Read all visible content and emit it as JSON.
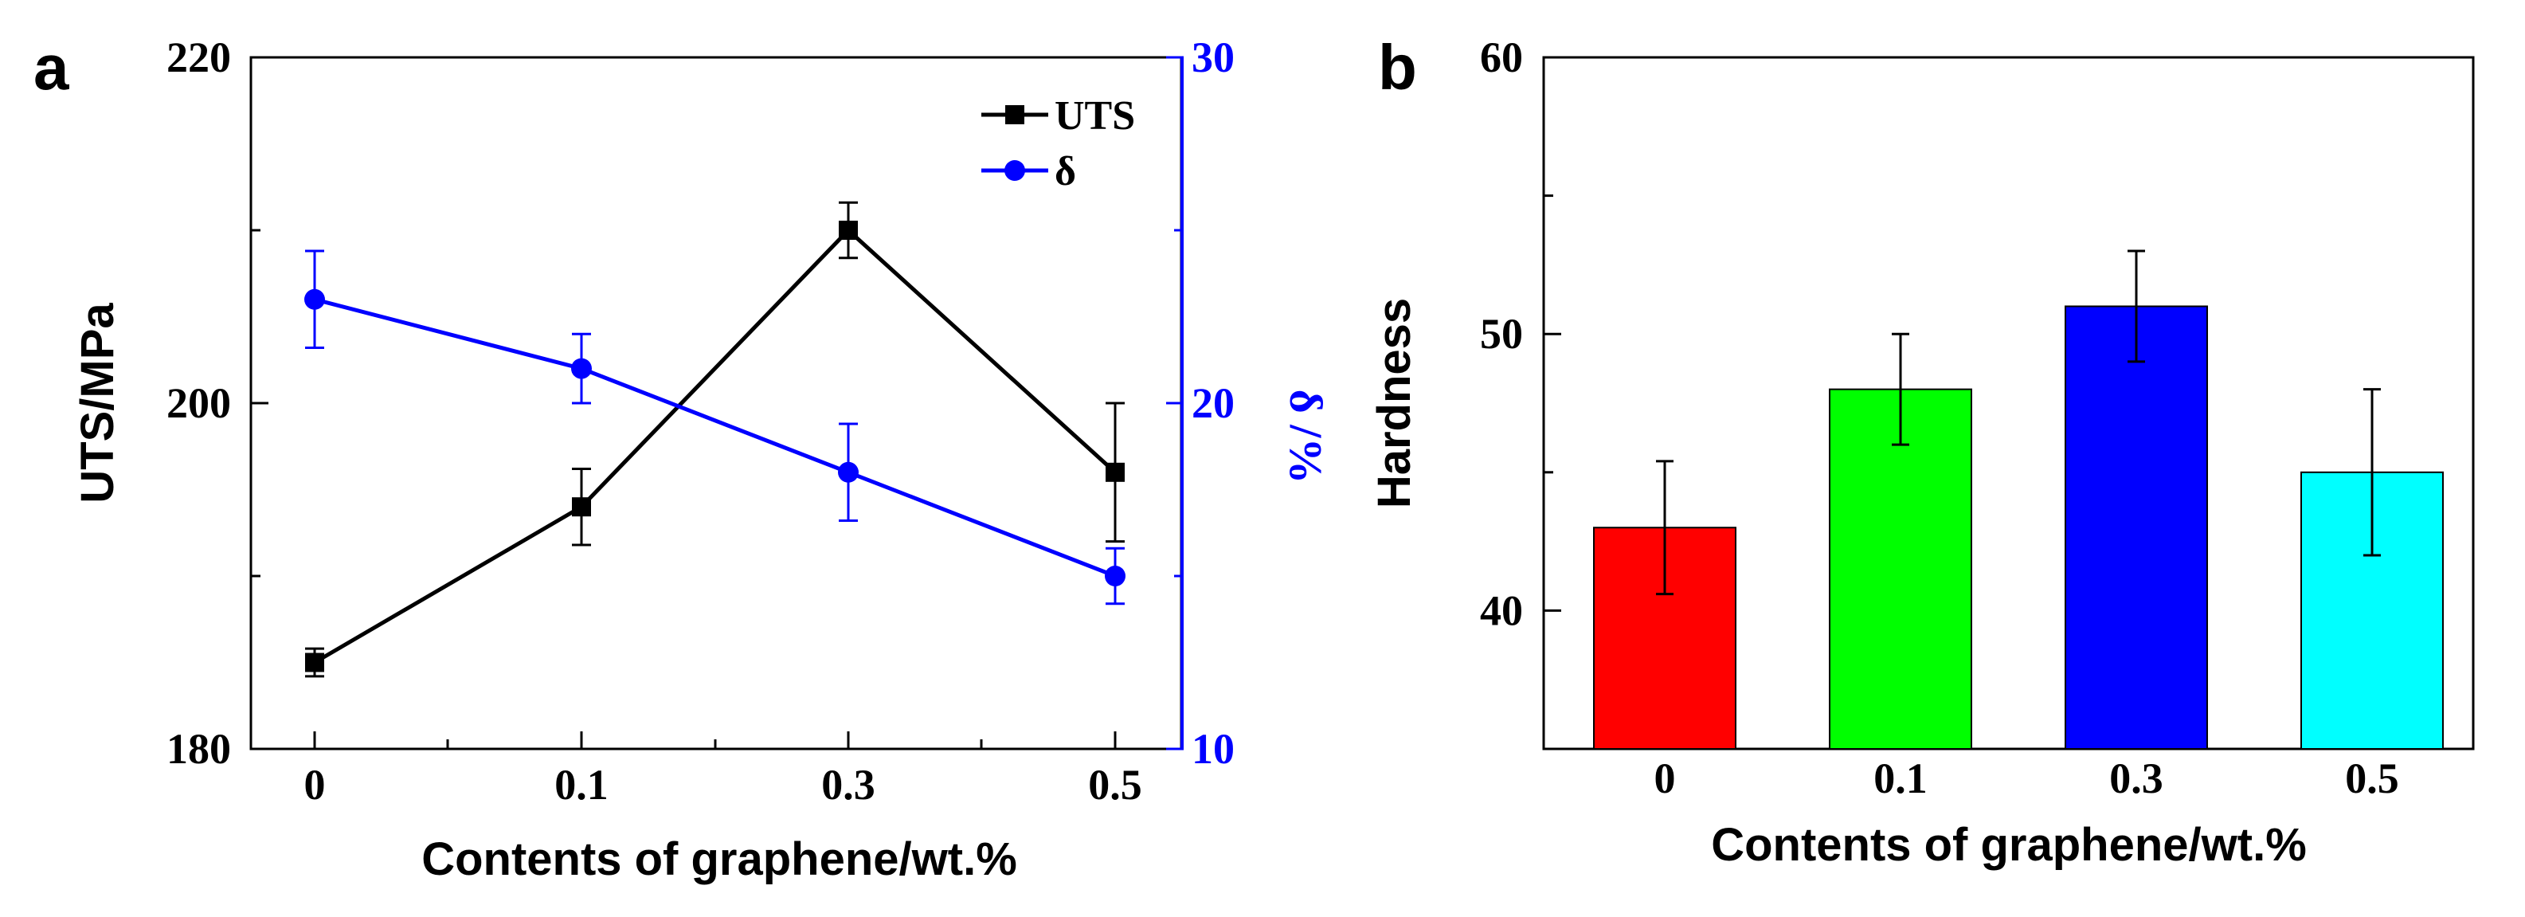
{
  "chart_data": [
    {
      "panel_label": "a",
      "type": "line",
      "categories": [
        "0",
        "0.1",
        "0.3",
        "0.5"
      ],
      "xlabel": "Contents of graphene/wt.%",
      "ylabel": "UTS/MPa",
      "ylim": [
        180,
        220
      ],
      "yticks": [
        "180",
        "200",
        "220"
      ],
      "y2label": "δ /%",
      "y2lim": [
        10,
        30
      ],
      "y2ticks": [
        "10",
        "20",
        "30"
      ],
      "legend_position": "top-right",
      "grid": false,
      "series": [
        {
          "name": "UTS",
          "axis": "left",
          "marker": "square",
          "color": "#000000",
          "values": [
            185,
            194,
            210,
            196
          ],
          "errors": [
            0.8,
            2.2,
            1.6,
            4.0
          ]
        },
        {
          "name": "δ",
          "axis": "right",
          "marker": "circle",
          "color": "#0000ff",
          "values": [
            23,
            21,
            18,
            15
          ],
          "errors": [
            1.4,
            1.0,
            1.4,
            0.8
          ]
        }
      ]
    },
    {
      "panel_label": "b",
      "type": "bar",
      "categories": [
        "0",
        "0.1",
        "0.3",
        "0.5"
      ],
      "xlabel": "Contents of graphene/wt.%",
      "ylabel": "Hardness",
      "ylim": [
        35,
        60
      ],
      "yticks": [
        "40",
        "50",
        "60"
      ],
      "grid": false,
      "values": [
        43,
        48,
        51,
        45
      ],
      "errors": [
        2.4,
        2.0,
        2.0,
        3.0
      ],
      "colors": [
        "#ff0000",
        "#00ff00",
        "#0000ff",
        "#00ffff"
      ]
    }
  ]
}
